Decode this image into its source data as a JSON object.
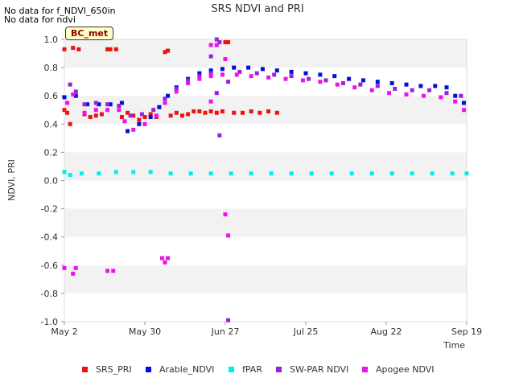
{
  "notes": [
    "No data for f_NDVI_650in",
    "No data for ndvi"
  ],
  "badge": "BC_met",
  "chart_data": {
    "type": "scatter",
    "title": "SRS NDVI and PRI",
    "xlabel": "Time",
    "ylabel": "NDVI, PRI",
    "x_type": "date",
    "xlim": [
      "2024-05-02",
      "2024-09-19"
    ],
    "ylim": [
      -1.0,
      1.0
    ],
    "x_ticks": [
      "May 2",
      "May 30",
      "Jun 27",
      "Jul 25",
      "Aug 22",
      "Sep 19"
    ],
    "y_ticks": [
      "1.0",
      "0.8",
      "0.6",
      "0.4",
      "0.2",
      "0.0",
      "-0.2",
      "-0.4",
      "-0.6",
      "-0.8",
      "-1.0"
    ],
    "grid": "horizontal bands",
    "legend_position": "bottom",
    "series": [
      {
        "name": "SRS_PRI",
        "color": "#ee1111",
        "points": [
          [
            "2024-05-02",
            0.93
          ],
          [
            "2024-05-02",
            0.5
          ],
          [
            "2024-05-03",
            0.48
          ],
          [
            "2024-05-04",
            0.4
          ],
          [
            "2024-05-05",
            0.94
          ],
          [
            "2024-05-07",
            0.93
          ],
          [
            "2024-05-09",
            0.47
          ],
          [
            "2024-05-11",
            0.45
          ],
          [
            "2024-05-13",
            0.46
          ],
          [
            "2024-05-15",
            0.47
          ],
          [
            "2024-05-17",
            0.93
          ],
          [
            "2024-05-18",
            0.93
          ],
          [
            "2024-05-20",
            0.93
          ],
          [
            "2024-05-22",
            0.45
          ],
          [
            "2024-05-24",
            0.48
          ],
          [
            "2024-05-26",
            0.46
          ],
          [
            "2024-05-28",
            0.43
          ],
          [
            "2024-05-30",
            0.45
          ],
          [
            "2024-06-01",
            0.47
          ],
          [
            "2024-06-03",
            0.45
          ],
          [
            "2024-06-06",
            0.91
          ],
          [
            "2024-06-07",
            0.92
          ],
          [
            "2024-06-08",
            0.46
          ],
          [
            "2024-06-10",
            0.48
          ],
          [
            "2024-06-12",
            0.46
          ],
          [
            "2024-06-14",
            0.47
          ],
          [
            "2024-06-16",
            0.49
          ],
          [
            "2024-06-18",
            0.49
          ],
          [
            "2024-06-20",
            0.48
          ],
          [
            "2024-06-22",
            0.49
          ],
          [
            "2024-06-24",
            0.48
          ],
          [
            "2024-06-26",
            0.49
          ],
          [
            "2024-06-27",
            0.98
          ],
          [
            "2024-06-28",
            0.98
          ],
          [
            "2024-06-30",
            0.48
          ],
          [
            "2024-07-03",
            0.48
          ],
          [
            "2024-07-06",
            0.49
          ],
          [
            "2024-07-09",
            0.48
          ],
          [
            "2024-07-12",
            0.49
          ],
          [
            "2024-07-15",
            0.48
          ]
        ]
      },
      {
        "name": "Arable_NDVI",
        "color": "#0011dd",
        "points": [
          [
            "2024-05-02",
            0.59
          ],
          [
            "2024-05-06",
            0.6
          ],
          [
            "2024-05-10",
            0.54
          ],
          [
            "2024-05-14",
            0.54
          ],
          [
            "2024-05-18",
            0.54
          ],
          [
            "2024-05-22",
            0.55
          ],
          [
            "2024-05-24",
            0.35
          ],
          [
            "2024-05-28",
            0.4
          ],
          [
            "2024-06-01",
            0.45
          ],
          [
            "2024-06-04",
            0.52
          ],
          [
            "2024-06-07",
            0.6
          ],
          [
            "2024-06-10",
            0.66
          ],
          [
            "2024-06-14",
            0.72
          ],
          [
            "2024-06-18",
            0.76
          ],
          [
            "2024-06-22",
            0.78
          ],
          [
            "2024-06-26",
            0.79
          ],
          [
            "2024-06-30",
            0.8
          ],
          [
            "2024-07-05",
            0.8
          ],
          [
            "2024-07-10",
            0.79
          ],
          [
            "2024-07-15",
            0.78
          ],
          [
            "2024-07-20",
            0.77
          ],
          [
            "2024-07-25",
            0.76
          ],
          [
            "2024-07-30",
            0.75
          ],
          [
            "2024-08-04",
            0.74
          ],
          [
            "2024-08-09",
            0.72
          ],
          [
            "2024-08-14",
            0.71
          ],
          [
            "2024-08-19",
            0.7
          ],
          [
            "2024-08-24",
            0.69
          ],
          [
            "2024-08-29",
            0.68
          ],
          [
            "2024-09-03",
            0.67
          ],
          [
            "2024-09-08",
            0.67
          ],
          [
            "2024-09-12",
            0.66
          ],
          [
            "2024-09-15",
            0.6
          ],
          [
            "2024-09-18",
            0.55
          ]
        ]
      },
      {
        "name": "fPAR",
        "color": "#00eeee",
        "points": [
          [
            "2024-05-02",
            0.06
          ],
          [
            "2024-05-04",
            0.04
          ],
          [
            "2024-05-08",
            0.05
          ],
          [
            "2024-05-14",
            0.05
          ],
          [
            "2024-05-20",
            0.06
          ],
          [
            "2024-05-26",
            0.06
          ],
          [
            "2024-06-01",
            0.06
          ],
          [
            "2024-06-08",
            0.05
          ],
          [
            "2024-06-15",
            0.05
          ],
          [
            "2024-06-22",
            0.05
          ],
          [
            "2024-06-29",
            0.05
          ],
          [
            "2024-07-06",
            0.05
          ],
          [
            "2024-07-13",
            0.05
          ],
          [
            "2024-07-20",
            0.05
          ],
          [
            "2024-07-27",
            0.05
          ],
          [
            "2024-08-03",
            0.05
          ],
          [
            "2024-08-10",
            0.05
          ],
          [
            "2024-08-17",
            0.05
          ],
          [
            "2024-08-24",
            0.05
          ],
          [
            "2024-08-31",
            0.05
          ],
          [
            "2024-09-07",
            0.05
          ],
          [
            "2024-09-14",
            0.05
          ],
          [
            "2024-09-19",
            0.05
          ]
        ]
      },
      {
        "name": "SW-PAR NDVI",
        "color": "#9922dd",
        "points": [
          [
            "2024-05-04",
            0.68
          ],
          [
            "2024-05-06",
            0.63
          ],
          [
            "2024-05-09",
            0.54
          ],
          [
            "2024-05-13",
            0.55
          ],
          [
            "2024-05-17",
            0.54
          ],
          [
            "2024-05-21",
            0.53
          ],
          [
            "2024-05-25",
            0.46
          ],
          [
            "2024-05-29",
            0.47
          ],
          [
            "2024-06-02",
            0.5
          ],
          [
            "2024-06-06",
            0.58
          ],
          [
            "2024-06-10",
            0.65
          ],
          [
            "2024-06-14",
            0.71
          ],
          [
            "2024-06-18",
            0.74
          ],
          [
            "2024-06-22",
            0.76
          ],
          [
            "2024-06-24",
            0.62
          ],
          [
            "2024-06-24",
            1.0
          ],
          [
            "2024-06-25",
            0.32
          ],
          [
            "2024-06-25",
            0.98
          ],
          [
            "2024-06-22",
            0.88
          ],
          [
            "2024-06-28",
            0.7
          ],
          [
            "2024-06-28",
            -0.99
          ],
          [
            "2024-07-02",
            0.77
          ],
          [
            "2024-07-08",
            0.76
          ],
          [
            "2024-07-14",
            0.75
          ],
          [
            "2024-07-20",
            0.74
          ],
          [
            "2024-07-26",
            0.72
          ],
          [
            "2024-08-01",
            0.71
          ],
          [
            "2024-08-07",
            0.69
          ],
          [
            "2024-08-13",
            0.68
          ],
          [
            "2024-08-19",
            0.67
          ],
          [
            "2024-08-25",
            0.65
          ],
          [
            "2024-08-31",
            0.64
          ],
          [
            "2024-09-06",
            0.64
          ],
          [
            "2024-09-12",
            0.62
          ],
          [
            "2024-09-17",
            0.6
          ]
        ]
      },
      {
        "name": "Apogee NDVI",
        "color": "#ee11ee",
        "points": [
          [
            "2024-05-02",
            -0.62
          ],
          [
            "2024-05-05",
            -0.66
          ],
          [
            "2024-05-06",
            -0.62
          ],
          [
            "2024-05-17",
            -0.64
          ],
          [
            "2024-05-19",
            -0.64
          ],
          [
            "2024-06-05",
            -0.55
          ],
          [
            "2024-06-06",
            -0.58
          ],
          [
            "2024-06-07",
            -0.55
          ],
          [
            "2024-06-27",
            -0.24
          ],
          [
            "2024-06-28",
            -0.39
          ],
          [
            "2024-06-22",
            0.96
          ],
          [
            "2024-06-24",
            0.96
          ],
          [
            "2024-06-27",
            0.86
          ],
          [
            "2024-06-22",
            0.56
          ],
          [
            "2024-05-03",
            0.55
          ],
          [
            "2024-05-05",
            0.61
          ],
          [
            "2024-05-09",
            0.48
          ],
          [
            "2024-05-13",
            0.5
          ],
          [
            "2024-05-17",
            0.5
          ],
          [
            "2024-05-21",
            0.5
          ],
          [
            "2024-05-23",
            0.42
          ],
          [
            "2024-05-26",
            0.36
          ],
          [
            "2024-05-30",
            0.4
          ],
          [
            "2024-06-03",
            0.46
          ],
          [
            "2024-06-06",
            0.55
          ],
          [
            "2024-06-10",
            0.63
          ],
          [
            "2024-06-14",
            0.69
          ],
          [
            "2024-06-18",
            0.72
          ],
          [
            "2024-06-22",
            0.74
          ],
          [
            "2024-06-26",
            0.75
          ],
          [
            "2024-07-01",
            0.75
          ],
          [
            "2024-07-06",
            0.74
          ],
          [
            "2024-07-12",
            0.73
          ],
          [
            "2024-07-18",
            0.72
          ],
          [
            "2024-07-24",
            0.71
          ],
          [
            "2024-07-30",
            0.7
          ],
          [
            "2024-08-05",
            0.68
          ],
          [
            "2024-08-11",
            0.66
          ],
          [
            "2024-08-17",
            0.64
          ],
          [
            "2024-08-23",
            0.62
          ],
          [
            "2024-08-29",
            0.61
          ],
          [
            "2024-09-04",
            0.6
          ],
          [
            "2024-09-10",
            0.59
          ],
          [
            "2024-09-15",
            0.56
          ],
          [
            "2024-09-18",
            0.5
          ]
        ]
      }
    ]
  }
}
